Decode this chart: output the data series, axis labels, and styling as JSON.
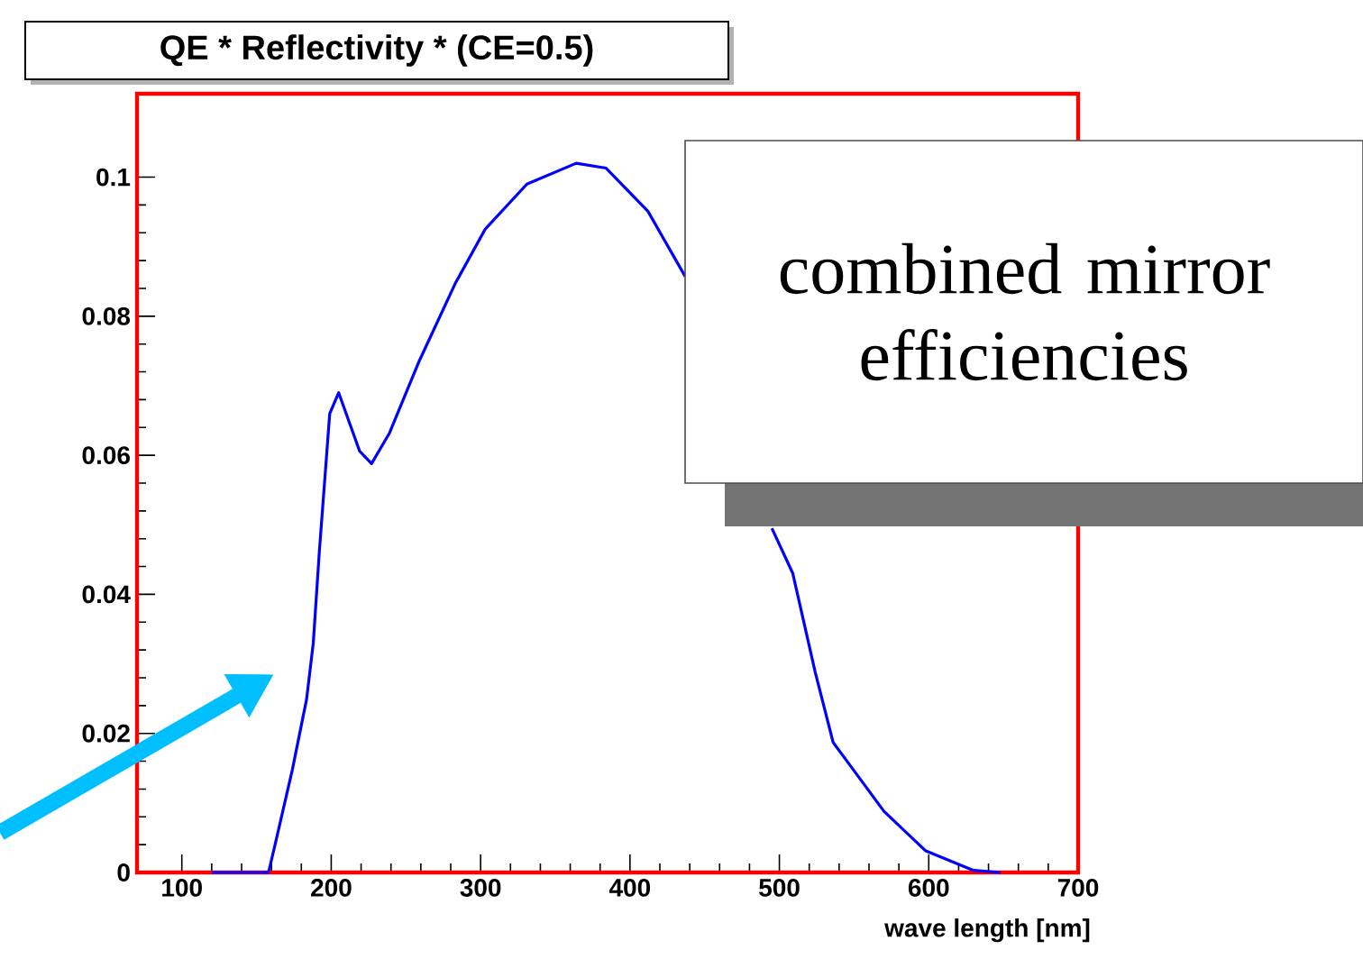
{
  "chart_data": {
    "type": "line",
    "title": "QE * Reflectivity * (CE=0.5)",
    "xlabel": "wave length [nm]",
    "annotations": [
      "combined mirror efficiencies"
    ],
    "x": [
      120,
      158,
      162,
      174,
      183.5,
      188,
      192,
      199,
      205,
      219,
      227,
      239,
      259,
      283,
      303,
      331,
      364,
      384,
      412,
      437,
      465,
      495,
      509,
      524,
      536,
      546,
      570,
      598,
      630,
      648
    ],
    "series": [
      {
        "color": "#0000ff",
        "values": [
          0,
          0,
          0.0036,
          0.0148,
          0.0249,
          0.033,
          0.046,
          0.066,
          0.069,
          0.0606,
          0.0588,
          0.0632,
          0.0736,
          0.0847,
          0.0925,
          0.099,
          0.102,
          0.1013,
          0.0951,
          0.0857,
          null,
          0.0495,
          0.043,
          0.0288,
          0.0187,
          0.0158,
          0.0088,
          0.0031,
          0.0003,
          0
        ]
      }
    ],
    "xlim": [
      70,
      700
    ],
    "ylim": [
      0,
      0.112
    ],
    "xticks": [
      100,
      200,
      300,
      400,
      500,
      600,
      700
    ],
    "yticks": [
      0,
      0.02,
      0.04,
      0.06,
      0.08,
      0.1
    ]
  }
}
